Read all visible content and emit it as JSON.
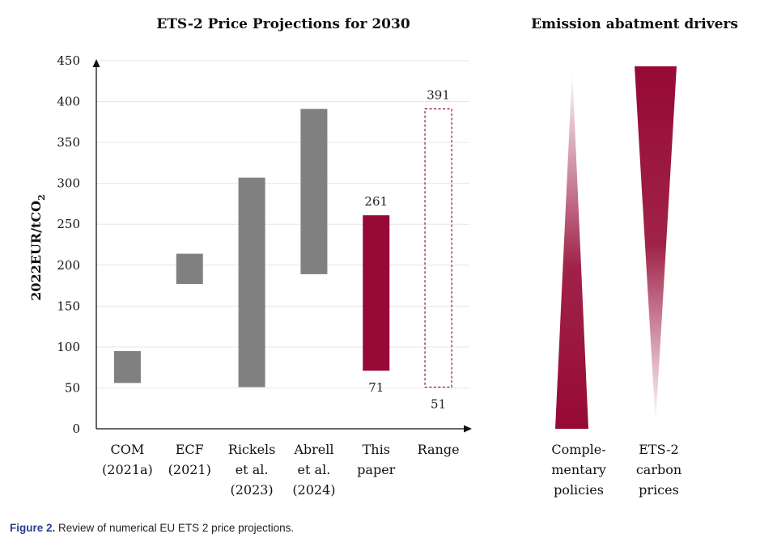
{
  "chart_data": [
    {
      "type": "bar",
      "subtype": "floating-range",
      "title": "ETS-2 Price Projections for 2030",
      "ylabel": "2022EUR/tCO2",
      "ylim": [
        0,
        450
      ],
      "yticks": [
        0,
        50,
        100,
        150,
        200,
        250,
        300,
        350,
        400,
        450
      ],
      "grid": true,
      "categories": [
        [
          "COM",
          "(2021a)"
        ],
        [
          "ECF",
          "(2021)"
        ],
        [
          "Rickels",
          "et al.",
          "(2023)"
        ],
        [
          "Abrell",
          "et al.",
          "(2024)"
        ],
        [
          "This",
          "paper"
        ],
        [
          "Range"
        ]
      ],
      "ranges": [
        {
          "low": 56,
          "high": 95,
          "color": "#808080",
          "style": "solid"
        },
        {
          "low": 177,
          "high": 214,
          "color": "#808080",
          "style": "solid"
        },
        {
          "low": 51,
          "high": 307,
          "color": "#808080",
          "style": "solid"
        },
        {
          "low": 189,
          "high": 391,
          "color": "#808080",
          "style": "solid"
        },
        {
          "low": 71,
          "high": 261,
          "color": "#960a35",
          "style": "solid"
        },
        {
          "low": 51,
          "high": 391,
          "color": "#960a35",
          "style": "dashed"
        }
      ],
      "data_labels": [
        {
          "bar": 4,
          "position": "top",
          "value": "261"
        },
        {
          "bar": 4,
          "position": "bottom",
          "value": "71"
        },
        {
          "bar": 5,
          "position": "top",
          "value": "391"
        },
        {
          "bar": 5,
          "position": "bottom",
          "value": "51"
        }
      ]
    },
    {
      "type": "diagram",
      "title": "Emission abatment drivers",
      "items": [
        {
          "label": [
            "Comple-",
            "mentary",
            "policies"
          ],
          "widest": "bottom",
          "color": "#960a35"
        },
        {
          "label": [
            "ETS-2",
            "carbon",
            "prices"
          ],
          "widest": "top",
          "color": "#960a35"
        }
      ]
    }
  ],
  "caption": {
    "figure_label": "Figure 2.",
    "text": " Review of numerical EU ETS 2 price projections."
  }
}
